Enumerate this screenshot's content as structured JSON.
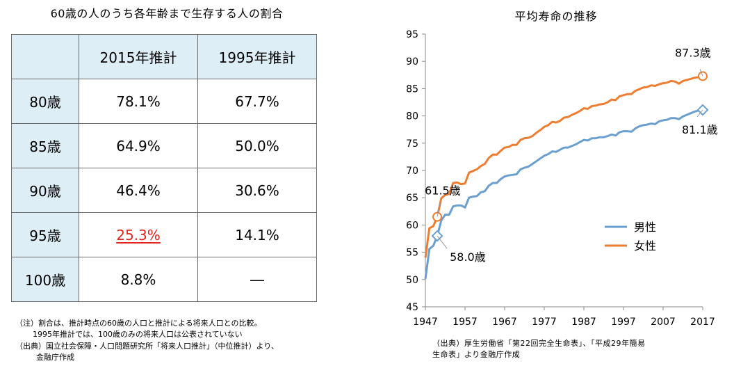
{
  "table": {
    "title": "60歳の人のうち各年齢まで生存する人の割合",
    "col_headers": [
      "",
      "2015年推計",
      "1995年推計"
    ],
    "rows": [
      {
        "age": "80歳",
        "v2015": "78.1%",
        "v1995": "67.7%"
      },
      {
        "age": "85歳",
        "v2015": "64.9%",
        "v1995": "50.0%"
      },
      {
        "age": "90歳",
        "v2015": "46.4%",
        "v1995": "30.6%"
      },
      {
        "age": "95歳",
        "v2015": "25.3%",
        "v1995": "14.1%"
      },
      {
        "age": "100歳",
        "v2015": "8.8%",
        "v1995": "―"
      }
    ],
    "highlight_color": "#e2231a",
    "header_bg": "#deeef6"
  },
  "notes": {
    "line1": "（注）割合は、推計時点の60歳の人口と推計による将来人口との比較。",
    "line2": "1995年推計では、100歳のみの将来人口は公表されていない",
    "line3": "（出典）国立社会保障・人口問題研究所「将来人口推計」（中位推計）より、",
    "line4": "金融庁作成"
  },
  "source": {
    "line1": "（出典）厚生労働省「第22回完全生命表」、「平成29年簡易",
    "line2": "生命表」より金融庁作成"
  },
  "chart_data": {
    "type": "line",
    "title": "平均寿命の推移",
    "xlabel": "",
    "ylabel": "",
    "xlim": [
      1947,
      2017
    ],
    "ylim": [
      45,
      95
    ],
    "x_ticks": [
      "1947",
      "1957",
      "1967",
      "1977",
      "1987",
      "1997",
      "2007",
      "2017"
    ],
    "y_ticks": [
      "45",
      "50",
      "55",
      "60",
      "65",
      "70",
      "75",
      "80",
      "85",
      "90",
      "95"
    ],
    "grid": false,
    "legend_position": "right-middle",
    "series": [
      {
        "name": "男性",
        "color": "#6a9fd0",
        "x": [
          1947,
          1948,
          1949,
          1950,
          1951,
          1952,
          1953,
          1954,
          1955,
          1956,
          1957,
          1958,
          1959,
          1960,
          1961,
          1962,
          1963,
          1964,
          1965,
          1966,
          1967,
          1968,
          1969,
          1970,
          1971,
          1972,
          1973,
          1974,
          1975,
          1976,
          1977,
          1978,
          1979,
          1980,
          1981,
          1982,
          1983,
          1984,
          1985,
          1986,
          1987,
          1988,
          1989,
          1990,
          1991,
          1992,
          1993,
          1994,
          1995,
          1996,
          1997,
          1998,
          1999,
          2000,
          2001,
          2002,
          2003,
          2004,
          2005,
          2006,
          2007,
          2008,
          2009,
          2010,
          2011,
          2012,
          2013,
          2014,
          2015,
          2016,
          2017
        ],
        "values": [
          50.1,
          55.6,
          56.2,
          58.0,
          60.8,
          61.9,
          61.9,
          63.4,
          63.6,
          63.6,
          63.2,
          65.0,
          65.2,
          65.3,
          66.0,
          66.2,
          67.2,
          67.7,
          67.7,
          68.4,
          68.9,
          69.1,
          69.2,
          69.3,
          70.2,
          70.5,
          70.7,
          71.2,
          71.7,
          72.2,
          72.7,
          73.0,
          73.5,
          73.4,
          73.8,
          74.2,
          74.2,
          74.5,
          74.8,
          75.2,
          75.6,
          75.5,
          75.9,
          75.9,
          76.1,
          76.1,
          76.3,
          76.6,
          76.4,
          77.0,
          77.2,
          77.2,
          77.1,
          77.7,
          78.1,
          78.3,
          78.4,
          78.6,
          78.5,
          79.0,
          79.2,
          79.3,
          79.6,
          79.6,
          79.4,
          79.9,
          80.2,
          80.5,
          80.8,
          81.0,
          81.1
        ],
        "annotations": [
          {
            "x": 1950,
            "y": 58.0,
            "label": "58.0歳"
          },
          {
            "x": 2017,
            "y": 81.1,
            "label": "81.1歳"
          }
        ]
      },
      {
        "name": "女性",
        "color": "#ed7d31",
        "x": [
          1947,
          1948,
          1949,
          1950,
          1951,
          1952,
          1953,
          1954,
          1955,
          1956,
          1957,
          1958,
          1959,
          1960,
          1961,
          1962,
          1963,
          1964,
          1965,
          1966,
          1967,
          1968,
          1969,
          1970,
          1971,
          1972,
          1973,
          1974,
          1975,
          1976,
          1977,
          1978,
          1979,
          1980,
          1981,
          1982,
          1983,
          1984,
          1985,
          1986,
          1987,
          1988,
          1989,
          1990,
          1991,
          1992,
          1993,
          1994,
          1995,
          1996,
          1997,
          1998,
          1999,
          2000,
          2001,
          2002,
          2003,
          2004,
          2005,
          2006,
          2007,
          2008,
          2009,
          2010,
          2011,
          2012,
          2013,
          2014,
          2015,
          2016,
          2017
        ],
        "values": [
          54.0,
          59.4,
          59.8,
          61.5,
          64.9,
          65.5,
          65.7,
          67.7,
          67.8,
          67.5,
          67.6,
          69.6,
          69.9,
          70.2,
          70.8,
          71.2,
          72.3,
          72.9,
          72.9,
          73.6,
          74.2,
          74.3,
          74.7,
          74.7,
          75.6,
          75.9,
          76.0,
          76.3,
          76.9,
          77.4,
          78.0,
          78.3,
          78.9,
          78.8,
          79.1,
          79.7,
          79.8,
          80.2,
          80.5,
          80.9,
          81.4,
          81.3,
          81.8,
          81.9,
          82.1,
          82.2,
          82.5,
          83.0,
          82.9,
          83.6,
          83.8,
          84.0,
          84.0,
          84.6,
          84.9,
          85.2,
          85.3,
          85.6,
          85.5,
          85.8,
          86.0,
          86.1,
          86.4,
          86.3,
          85.9,
          86.4,
          86.6,
          86.8,
          87.0,
          87.1,
          87.3
        ],
        "annotations": [
          {
            "x": 1950,
            "y": 61.5,
            "label": "61.5歳"
          },
          {
            "x": 2017,
            "y": 87.3,
            "label": "87.3歳"
          }
        ]
      }
    ]
  }
}
